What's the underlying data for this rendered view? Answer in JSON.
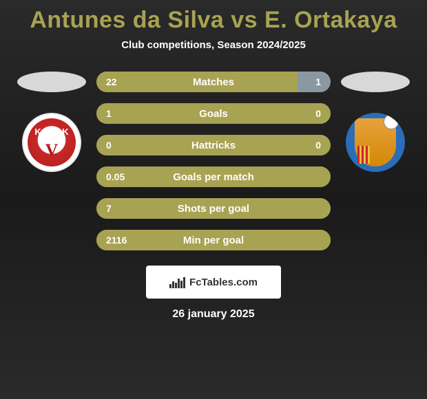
{
  "title": {
    "player1": "Antunes da Silva",
    "vs": "vs",
    "player2": "E. Ortakaya",
    "color": "#a8a253"
  },
  "subtitle": "Club competitions, Season 2024/2025",
  "colors": {
    "bar_left": "#a8a253",
    "bar_right": "#8a98a0",
    "bar_right_fill": "#7a8890",
    "bar_bg_when_full_left": "#a8a253",
    "text": "#ffffff"
  },
  "bars": [
    {
      "label": "Matches",
      "left": "22",
      "right": "1",
      "left_pct": 86,
      "right_pct": 14
    },
    {
      "label": "Goals",
      "left": "1",
      "right": "0",
      "left_pct": 100,
      "right_pct": 0
    },
    {
      "label": "Hattricks",
      "left": "0",
      "right": "0",
      "left_pct": 100,
      "right_pct": 0
    },
    {
      "label": "Goals per match",
      "left": "0.05",
      "right": "",
      "left_pct": 100,
      "right_pct": 0
    },
    {
      "label": "Shots per goal",
      "left": "7",
      "right": "",
      "left_pct": 100,
      "right_pct": 0
    },
    {
      "label": "Min per goal",
      "left": "2116",
      "right": "",
      "left_pct": 100,
      "right_pct": 0
    }
  ],
  "footer_brand": "FcTables.com",
  "footer_logo_bars_heights": [
    6,
    10,
    8,
    14,
    11,
    16
  ],
  "date": "26 january 2025",
  "badges": {
    "left": {
      "bg": "#ffffff",
      "accent": "#b71c1c",
      "letter": "V",
      "small": "K"
    },
    "right": {
      "bg": "#2a6db8",
      "shield": "#d48806"
    }
  }
}
